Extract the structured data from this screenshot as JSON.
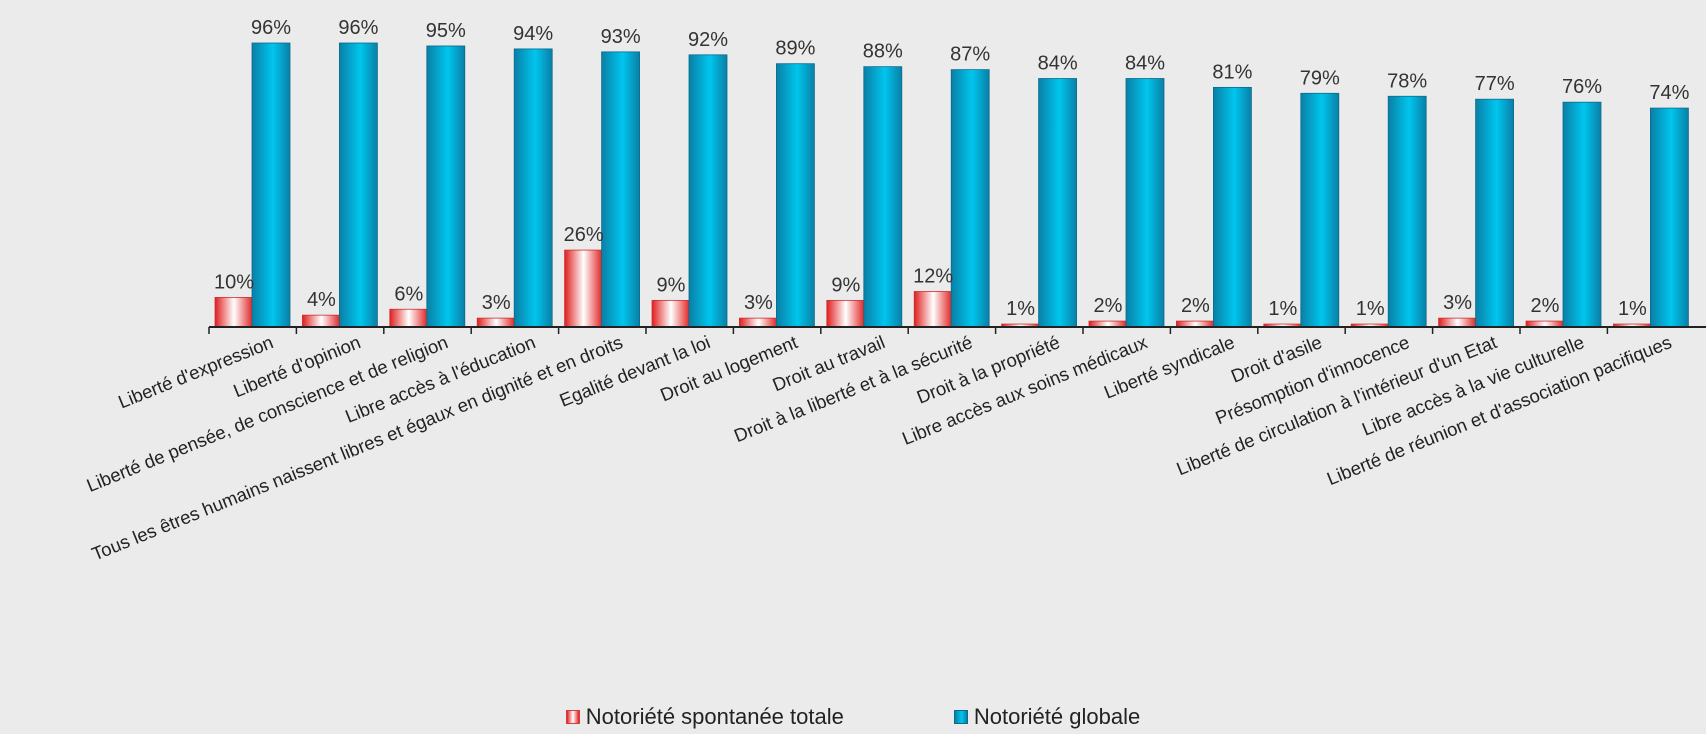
{
  "chart_data": {
    "type": "bar",
    "categories": [
      "Liberté d'expression",
      "Liberté d'opinion",
      "Liberté de pensée, de conscience et de religion",
      "Libre accès à l'éducation",
      "Tous les êtres humains naissent libres et égaux en dignité et en droits",
      "Egalité devant la loi",
      "Droit au logement",
      "Droit au travail",
      "Droit à la liberté et à la sécurité",
      "Droit à la propriété",
      "Libre accès aux soins médicaux",
      "Liberté syndicale",
      "Droit d'asile",
      "Présomption d'innocence",
      "Liberté de circulation à l'intérieur d'un Etat",
      "Libre accès à la vie culturelle",
      "Liberté de réunion et d'association pacifiques"
    ],
    "series": [
      {
        "name": "Notoriété spontanée totale",
        "values": [
          10,
          4,
          6,
          3,
          26,
          9,
          3,
          9,
          12,
          1,
          2,
          2,
          1,
          1,
          3,
          2,
          1
        ],
        "labels": [
          "10%",
          "4%",
          "6%",
          "3%",
          "26%",
          "9%",
          "3%",
          "9%",
          "12%",
          "1%",
          "2%",
          "2%",
          "1%",
          "1%",
          "3%",
          "2%",
          "1%"
        ],
        "color": "#e01e1e"
      },
      {
        "name": "Notoriété globale",
        "values": [
          96,
          96,
          95,
          94,
          93,
          92,
          89,
          88,
          87,
          84,
          84,
          81,
          79,
          78,
          77,
          76,
          74
        ],
        "labels": [
          "96%",
          "96%",
          "95%",
          "94%",
          "93%",
          "92%",
          "89%",
          "88%",
          "87%",
          "84%",
          "84%",
          "81%",
          "79%",
          "78%",
          "77%",
          "76%",
          "74%"
        ],
        "color": "#00b4e0"
      }
    ],
    "ylim": [
      0,
      100
    ],
    "grid": false,
    "legend_position": "bottom"
  }
}
